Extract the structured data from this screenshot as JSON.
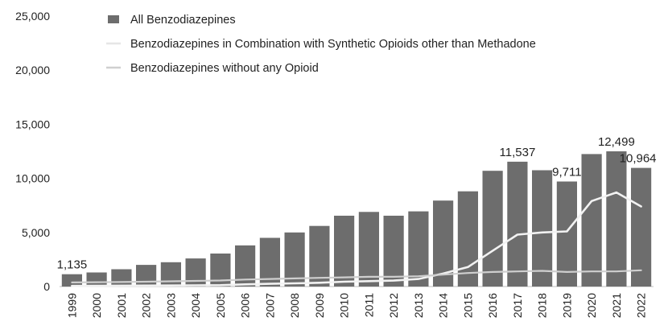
{
  "chart_data": {
    "type": "bar",
    "categories": [
      "1999",
      "2000",
      "2001",
      "2002",
      "2003",
      "2004",
      "2005",
      "2006",
      "2007",
      "2008",
      "2009",
      "2010",
      "2011",
      "2012",
      "2013",
      "2014",
      "2015",
      "2016",
      "2017",
      "2018",
      "2019",
      "2020",
      "2021",
      "2022"
    ],
    "ylim": [
      0,
      25000
    ],
    "yticks": [
      "0",
      "5,000",
      "10,000",
      "15,000",
      "20,000",
      "25,000"
    ],
    "ytick_values": [
      0,
      5000,
      10000,
      15000,
      20000,
      25000
    ],
    "series": [
      {
        "name": "All Benzodiazepines",
        "kind": "bar",
        "color": "#6d6d6d",
        "values": [
          1135,
          1300,
          1600,
          2000,
          2250,
          2600,
          3050,
          3800,
          4500,
          5000,
          5600,
          6550,
          6900,
          6550,
          6950,
          7950,
          8800,
          10700,
          11537,
          10750,
          9711,
          12250,
          12499,
          10964
        ]
      },
      {
        "name": "Benzodiazepines in Combination with Synthetic Opioids other than Methadone",
        "kind": "line",
        "color": "#f2f2f2",
        "values": [
          60,
          70,
          80,
          90,
          100,
          110,
          130,
          200,
          250,
          300,
          350,
          450,
          500,
          550,
          700,
          1200,
          1800,
          3300,
          4800,
          5000,
          5100,
          7900,
          8700,
          7400
        ]
      },
      {
        "name": "Benzodiazepines without any Opioid",
        "kind": "line",
        "color": "#cfcfcf",
        "values": [
          380,
          400,
          420,
          450,
          480,
          520,
          560,
          650,
          700,
          750,
          800,
          850,
          900,
          900,
          950,
          1100,
          1250,
          1350,
          1400,
          1450,
          1350,
          1400,
          1400,
          1500
        ]
      }
    ],
    "annotations": [
      {
        "index": 0,
        "text": "1,135"
      },
      {
        "index": 18,
        "text": "11,537"
      },
      {
        "index": 20,
        "text": "9,711"
      },
      {
        "index": 22,
        "text": "12,499"
      },
      {
        "index": 23,
        "text": "10,964"
      }
    ],
    "grid": false,
    "legend_position": "top"
  }
}
